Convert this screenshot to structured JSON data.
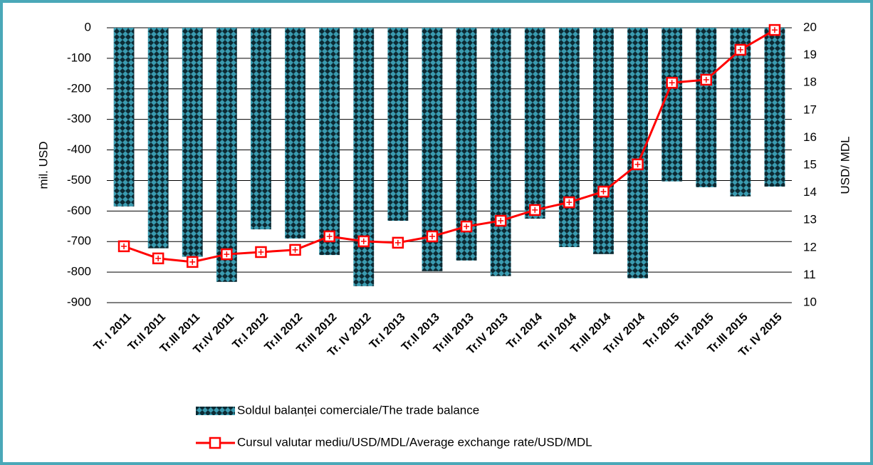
{
  "chart_data": {
    "type": "bar-line",
    "y_label": "mil. USD",
    "y2_label": "USD/ MDL",
    "categories": [
      "Tr. I 2011",
      "Tr.II 2011",
      "Tr.III 2011",
      "Tr.IV 2011",
      "Tr.I 2012",
      "Tr.II 2012",
      "Tr.III 2012",
      "Tr. IV 2012",
      "Tr.I 2013",
      "Tr.II 2013",
      "Tr.III 2013",
      "Tr.IV 2013",
      "Tr.I 2014",
      "Tr.II 2014",
      "Tr.III 2014",
      "Tr.IV 2014",
      "Tr.I 2015",
      "Tr.II 2015",
      "Tr.III 2015",
      "Tr. IV 2015"
    ],
    "series": [
      {
        "name": "Soldul balanței comerciale/The trade balance",
        "color": "#3a9bb0",
        "type": "bar",
        "values": [
          -585,
          -722,
          -750,
          -832,
          -660,
          -690,
          -744,
          -846,
          -632,
          -797,
          -762,
          -813,
          -625,
          -718,
          -741,
          -820,
          -503,
          -522,
          -552,
          -520
        ]
      },
      {
        "name": "Cursul valutar mediu/USD/MDL/Average exchange rate/USD/MDL",
        "color": "#ff0000",
        "type": "line",
        "axis": "y2",
        "values": [
          12.05,
          11.61,
          11.48,
          11.76,
          11.84,
          11.92,
          12.41,
          12.23,
          12.18,
          12.41,
          12.77,
          12.98,
          13.37,
          13.65,
          14.04,
          15.03,
          18.0,
          18.11,
          19.2,
          19.92
        ]
      }
    ],
    "ylim": [
      -900,
      0
    ],
    "yticks": [
      0,
      -100,
      -200,
      -300,
      -400,
      -500,
      -600,
      -700,
      -800,
      -900
    ],
    "y2lim": [
      10,
      20
    ],
    "y2ticks": [
      10,
      11,
      12,
      13,
      14,
      15,
      16,
      17,
      18,
      19,
      20
    ],
    "grid": true
  }
}
